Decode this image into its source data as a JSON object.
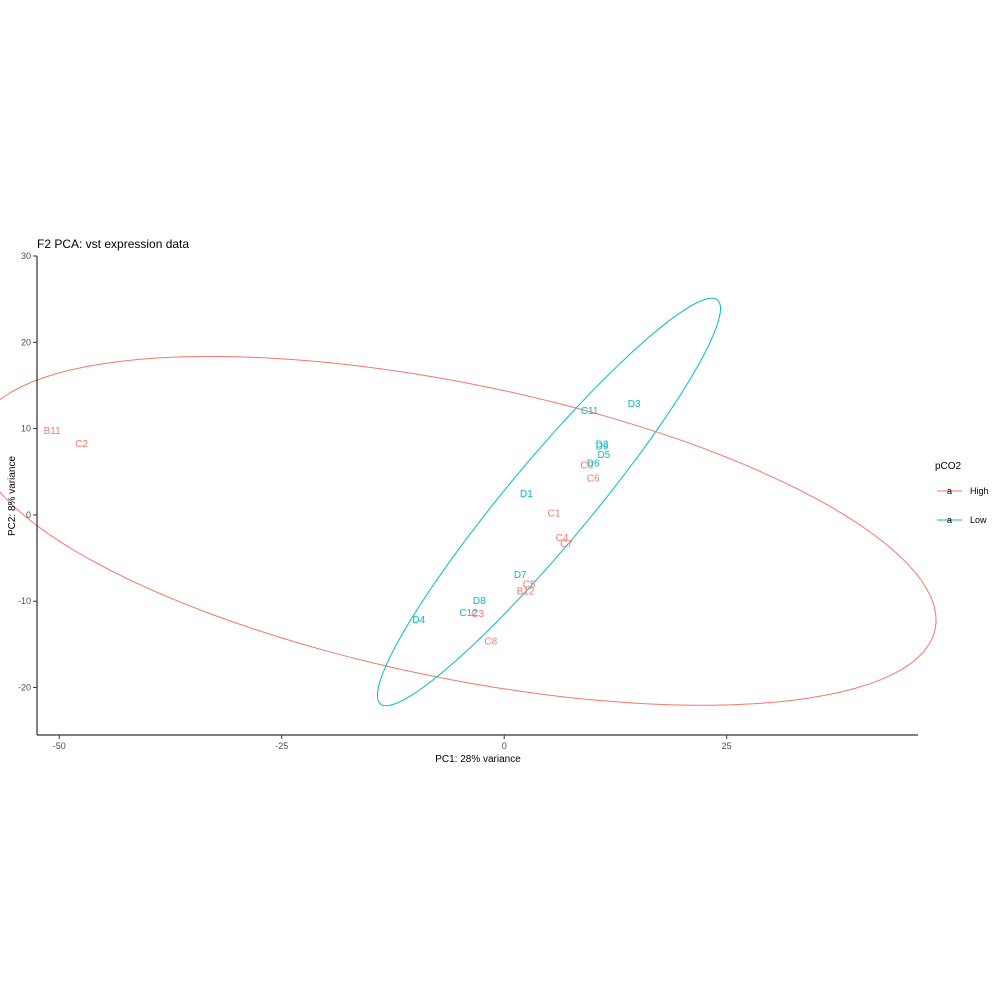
{
  "chart_data": {
    "type": "scatter",
    "title": "F2 PCA: vst expression data",
    "xlabel": "PC1: 28% variance",
    "ylabel": "PC2: 8% variance",
    "xlim": [
      -52.5,
      46.5
    ],
    "ylim": [
      -25.5,
      30
    ],
    "x_ticks": [
      -50,
      -25,
      0,
      25
    ],
    "y_ticks": [
      -20,
      -10,
      0,
      10,
      20,
      30
    ],
    "grid": false,
    "legend": {
      "title": "pCO2",
      "placement": "right",
      "key_glyph": "a"
    },
    "series": [
      {
        "name": "High",
        "color": "#F8766D",
        "points": [
          {
            "label": "B11",
            "x": -50.8,
            "y": 9.8
          },
          {
            "label": "C2",
            "x": -47.5,
            "y": 8.3
          },
          {
            "label": "C1",
            "x": 5.6,
            "y": 0.2
          },
          {
            "label": "C4",
            "x": 6.5,
            "y": -2.6
          },
          {
            "label": "C7",
            "x": 7.0,
            "y": -3.3
          },
          {
            "label": "C5",
            "x": 2.8,
            "y": -8.0
          },
          {
            "label": "B12",
            "x": 2.4,
            "y": -8.8
          },
          {
            "label": "C3",
            "x": -3.0,
            "y": -11.4
          },
          {
            "label": "C8",
            "x": -1.5,
            "y": -14.6
          },
          {
            "label": "C6",
            "x": 10.0,
            "y": 4.3
          },
          {
            "label": "C9",
            "x": 9.3,
            "y": 5.8
          }
        ]
      },
      {
        "name": "Low",
        "color": "#00BFC4",
        "points": [
          {
            "label": "D3",
            "x": 14.6,
            "y": 12.9
          },
          {
            "label": "C11",
            "x": 9.6,
            "y": 12.1
          },
          {
            "label": "D2",
            "x": 11.0,
            "y": 8.2
          },
          {
            "label": "D9",
            "x": 11.0,
            "y": 8.0
          },
          {
            "label": "D5",
            "x": 11.2,
            "y": 7.0
          },
          {
            "label": "D6",
            "x": 10.0,
            "y": 6.0
          },
          {
            "label": "D1",
            "x": 2.5,
            "y": 2.5
          },
          {
            "label": "D7",
            "x": 1.8,
            "y": -6.9
          },
          {
            "label": "D8",
            "x": -2.8,
            "y": -9.9
          },
          {
            "label": "C12",
            "x": -4.0,
            "y": -11.3
          },
          {
            "label": "D4",
            "x": -9.6,
            "y": -12.1
          }
        ]
      }
    ]
  }
}
